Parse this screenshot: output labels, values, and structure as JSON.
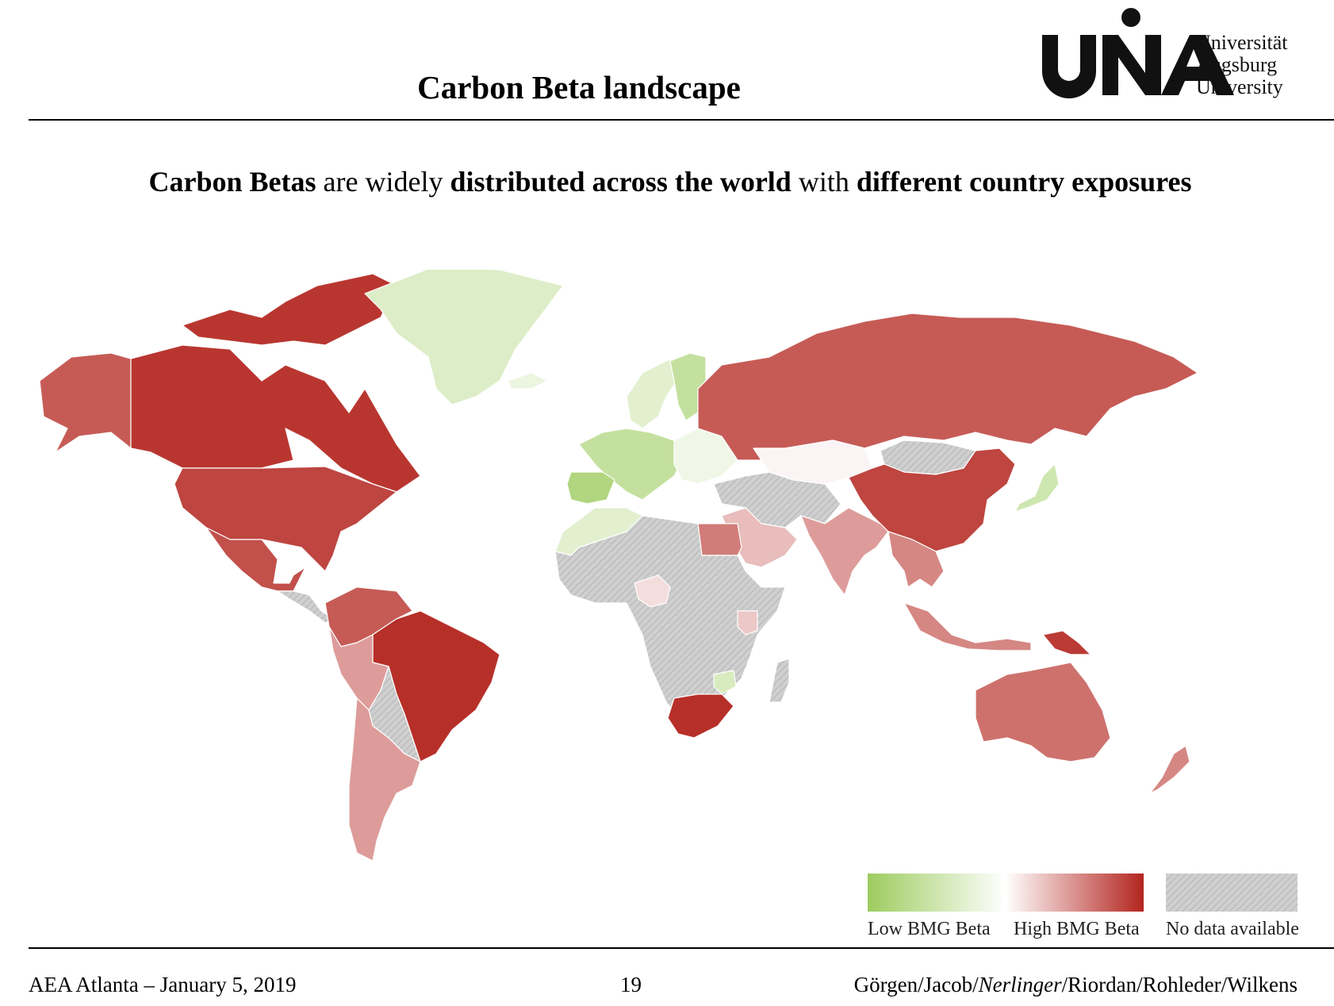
{
  "header": {
    "title": "Carbon Beta landscape",
    "logo_lines": [
      "Universität",
      "Augsburg",
      "University"
    ]
  },
  "subtitle": {
    "part1_bold": "Carbon Betas",
    "part2": " are widely ",
    "part3_bold": "distributed across the world",
    "part4": " with ",
    "part5_bold": "different country exposures"
  },
  "legend": {
    "low_label": "Low BMG Beta",
    "high_label": "High BMG Beta",
    "nodata_label": "No data available",
    "low_color": "#9dcc5f",
    "mid_color": "#ffffff",
    "high_color": "#b3241e",
    "nodata_color": "#c9c9c9"
  },
  "map_regions": [
    {
      "name": "alaska",
      "level": 0.75
    },
    {
      "name": "canada",
      "level": 0.92
    },
    {
      "name": "canadian-arctic",
      "level": 0.92
    },
    {
      "name": "greenland",
      "level": -0.35
    },
    {
      "name": "iceland",
      "level": -0.2
    },
    {
      "name": "usa",
      "level": 0.85
    },
    {
      "name": "mexico",
      "level": 0.8
    },
    {
      "name": "central-america",
      "level": null
    },
    {
      "name": "venezuela-colombia",
      "level": 0.75
    },
    {
      "name": "brazil",
      "level": 0.95
    },
    {
      "name": "peru",
      "level": 0.45
    },
    {
      "name": "bolivia-paraguay",
      "level": null
    },
    {
      "name": "argentina-chile",
      "level": 0.45
    },
    {
      "name": "western-europe",
      "level": -0.6
    },
    {
      "name": "scandinavia",
      "level": -0.3
    },
    {
      "name": "finland",
      "level": -0.6
    },
    {
      "name": "iberia",
      "level": -0.8
    },
    {
      "name": "eastern-europe",
      "level": -0.15
    },
    {
      "name": "russia",
      "level": 0.75
    },
    {
      "name": "kazakhstan",
      "level": 0.05
    },
    {
      "name": "mongolia",
      "level": null
    },
    {
      "name": "china",
      "level": 0.85
    },
    {
      "name": "japan",
      "level": -0.5
    },
    {
      "name": "middle-east",
      "level": null
    },
    {
      "name": "saudi-arabia",
      "level": 0.3
    },
    {
      "name": "india",
      "level": 0.45
    },
    {
      "name": "southeast-asia",
      "level": 0.55
    },
    {
      "name": "indonesia",
      "level": 0.55
    },
    {
      "name": "papua-new-guinea",
      "level": 0.9
    },
    {
      "name": "australia",
      "level": 0.65
    },
    {
      "name": "new-zealand",
      "level": 0.55
    },
    {
      "name": "north-africa",
      "level": -0.3
    },
    {
      "name": "egypt",
      "level": 0.6
    },
    {
      "name": "sub-saharan-africa",
      "level": null
    },
    {
      "name": "nigeria",
      "level": 0.15
    },
    {
      "name": "kenya",
      "level": 0.25
    },
    {
      "name": "mozambique",
      "level": -0.4
    },
    {
      "name": "madagascar",
      "level": null
    },
    {
      "name": "south-africa",
      "level": 0.95
    }
  ],
  "footer": {
    "left": "AEA Atlanta – January 5, 2019",
    "page": "19",
    "authors_pre": "Görgen/Jacob/",
    "authors_italic": "Nerlinger",
    "authors_post": "/Riordan/Rohleder/Wilkens"
  }
}
